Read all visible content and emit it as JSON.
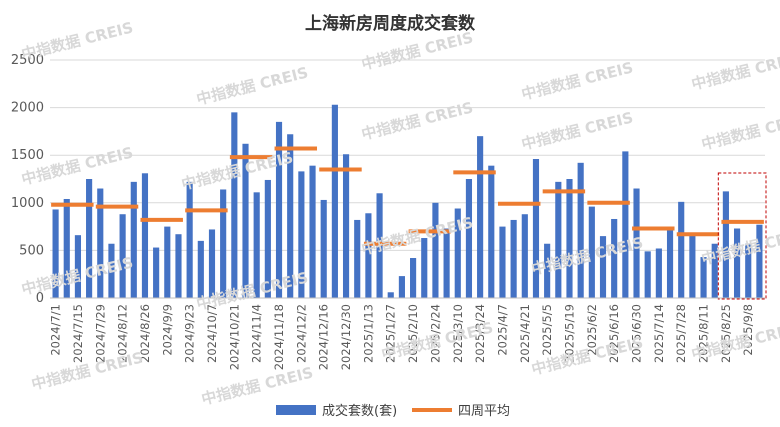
{
  "chart_data": {
    "type": "bar",
    "title": "上海新房周度成交套数",
    "watermark": "中指数据 CREIS",
    "ylim": [
      0,
      2500
    ],
    "yticks": [
      0,
      500,
      1000,
      1500,
      2000,
      2500
    ],
    "xlabel": "",
    "ylabel": "",
    "grid": true,
    "legend_position": "bottom",
    "colors": {
      "bar": "#4472C4",
      "line": "#ED7D31",
      "highlight": "#C00000"
    },
    "categories": [
      "2024/7/1",
      "2024/7/8",
      "2024/7/15",
      "2024/7/22",
      "2024/7/29",
      "2024/8/5",
      "2024/8/12",
      "2024/8/19",
      "2024/8/26",
      "2024/9/2",
      "2024/9/9",
      "2024/9/16",
      "2024/9/23",
      "2024/9/30",
      "2024/10/7",
      "2024/10/14",
      "2024/10/21",
      "2024/10/28",
      "2024/11/4",
      "2024/11/11",
      "2024/11/18",
      "2024/11/25",
      "2024/12/2",
      "2024/12/9",
      "2024/12/16",
      "2024/12/23",
      "2024/12/30",
      "2025/1/6",
      "2025/1/13",
      "2025/1/20",
      "2025/1/27",
      "2025/2/3",
      "2025/2/10",
      "2025/2/17",
      "2025/2/24",
      "2025/3/3",
      "2025/3/10",
      "2025/3/17",
      "2025/3/24",
      "2025/3/31",
      "2025/4/7",
      "2025/4/14",
      "2025/4/21",
      "2025/4/28",
      "2025/5/5",
      "2025/5/12",
      "2025/5/19",
      "2025/5/26",
      "2025/6/2",
      "2025/6/9",
      "2025/6/16",
      "2025/6/23",
      "2025/6/30",
      "2025/7/7",
      "2025/7/14",
      "2025/7/21",
      "2025/7/28",
      "2025/8/4",
      "2025/8/11",
      "2025/8/18",
      "2025/8/25",
      "2025/9/1",
      "2025/9/8",
      "2025/9/15"
    ],
    "visible_x_labels": [
      "2024/7/1",
      "2024/7/15",
      "2024/7/29",
      "2024/8/12",
      "2024/8/26",
      "2024/9/9",
      "2024/9/23",
      "2024/10/7",
      "2024/10/21",
      "2024/11/4",
      "2024/11/18",
      "2024/12/2",
      "2024/12/16",
      "2024/12/30",
      "2025/1/13",
      "2025/1/27",
      "2025/2/10",
      "2025/2/24",
      "2025/3/10",
      "2025/3/24",
      "2025/4/7",
      "2025/4/21",
      "2025/5/5",
      "2025/5/19",
      "2025/6/2",
      "2025/6/16",
      "2025/6/30",
      "2025/7/14",
      "2025/7/28",
      "2025/8/11",
      "2025/8/25",
      "2025/9/8"
    ],
    "series": [
      {
        "name": "成交套数(套)",
        "type": "bar",
        "values": [
          930,
          1040,
          660,
          1250,
          1150,
          570,
          880,
          1220,
          1310,
          530,
          750,
          670,
          1220,
          600,
          720,
          1140,
          1950,
          1620,
          1110,
          1240,
          1850,
          1720,
          1330,
          1390,
          1030,
          2030,
          1510,
          820,
          890,
          1100,
          60,
          230,
          420,
          630,
          1000,
          730,
          940,
          1250,
          1700,
          1390,
          750,
          820,
          880,
          1460,
          570,
          1220,
          1250,
          1420,
          960,
          650,
          830,
          1540,
          1150,
          490,
          520,
          720,
          1010,
          670,
          430,
          570,
          1120,
          730,
          570,
          770
        ]
      },
      {
        "name": "四周平均",
        "type": "segments",
        "segments": [
          {
            "from": "2024/7/1",
            "to": "2024/7/22",
            "value": 980
          },
          {
            "from": "2024/7/29",
            "to": "2024/8/19",
            "value": 960
          },
          {
            "from": "2024/8/26",
            "to": "2024/9/16",
            "value": 820
          },
          {
            "from": "2024/9/23",
            "to": "2024/10/14",
            "value": 920
          },
          {
            "from": "2024/10/21",
            "to": "2024/11/11",
            "value": 1480
          },
          {
            "from": "2024/11/18",
            "to": "2024/12/9",
            "value": 1570
          },
          {
            "from": "2024/12/16",
            "to": "2025/1/6",
            "value": 1350
          },
          {
            "from": "2025/1/13",
            "to": "2025/2/3",
            "value": 570
          },
          {
            "from": "2025/2/10",
            "to": "2025/3/3",
            "value": 700
          },
          {
            "from": "2025/3/10",
            "to": "2025/3/31",
            "value": 1320
          },
          {
            "from": "2025/4/7",
            "to": "2025/4/28",
            "value": 990
          },
          {
            "from": "2025/5/5",
            "to": "2025/5/26",
            "value": 1120
          },
          {
            "from": "2025/6/2",
            "to": "2025/6/23",
            "value": 1000
          },
          {
            "from": "2025/6/30",
            "to": "2025/7/21",
            "value": 730
          },
          {
            "from": "2025/7/28",
            "to": "2025/8/18",
            "value": 670
          },
          {
            "from": "2025/8/25",
            "to": "2025/9/15",
            "value": 800
          }
        ]
      }
    ],
    "highlight_range": {
      "from": "2025/8/25",
      "to": "2025/9/15"
    }
  }
}
